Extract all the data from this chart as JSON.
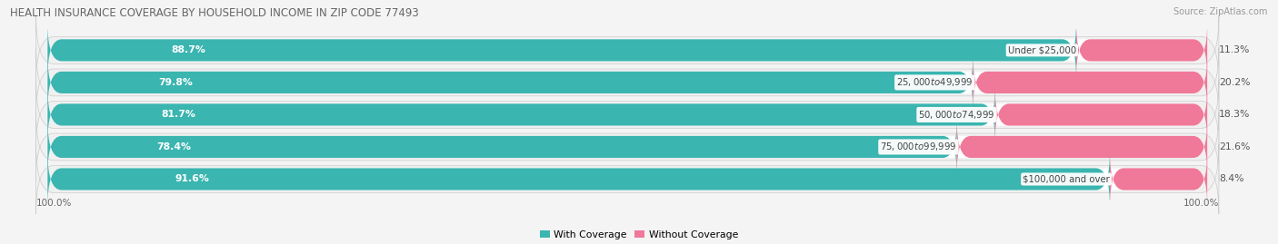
{
  "title": "HEALTH INSURANCE COVERAGE BY HOUSEHOLD INCOME IN ZIP CODE 77493",
  "source": "Source: ZipAtlas.com",
  "categories": [
    "Under $25,000",
    "$25,000 to $49,999",
    "$50,000 to $74,999",
    "$75,000 to $99,999",
    "$100,000 and over"
  ],
  "with_coverage": [
    88.7,
    79.8,
    81.7,
    78.4,
    91.6
  ],
  "without_coverage": [
    11.3,
    20.2,
    18.3,
    21.6,
    8.4
  ],
  "color_with": "#3ab5b0",
  "color_without": "#f07898",
  "color_without_light": "#f8aabb",
  "background_color": "#f4f4f4",
  "bar_bg_color": "#e0e0e0",
  "row_bg_color": "#e8e8e8",
  "title_fontsize": 8.5,
  "label_fontsize": 7.8,
  "tick_fontsize": 7.5,
  "source_fontsize": 7.0,
  "bar_height": 0.68,
  "legend_label_with": "With Coverage",
  "legend_label_without": "Without Coverage"
}
